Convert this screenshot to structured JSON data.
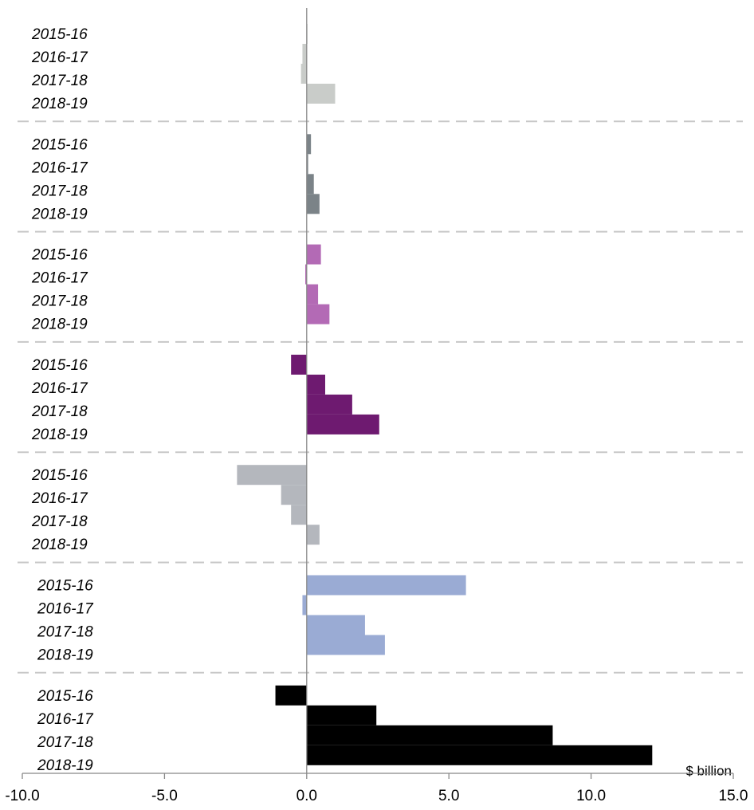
{
  "chart_data": {
    "type": "bar",
    "orientation": "horizontal",
    "xlabel": "$ billion",
    "xlim": [
      -10,
      15
    ],
    "xticks": [
      {
        "value": -10,
        "label": "-10.0"
      },
      {
        "value": -5,
        "label": "-5.0"
      },
      {
        "value": 0,
        "label": "0.0"
      },
      {
        "value": 5,
        "label": "5.0"
      },
      {
        "value": 10,
        "label": "10.0"
      },
      {
        "value": 15,
        "label": "15.0"
      }
    ],
    "series": [
      {
        "color": "#c9ccc9",
        "categories": [
          "2015-16",
          "2016-17",
          "2017-18",
          "2018-19"
        ],
        "values": [
          0.02,
          -0.15,
          -0.2,
          1.0
        ]
      },
      {
        "color": "#7b8388",
        "categories": [
          "2015-16",
          "2016-17",
          "2017-18",
          "2018-19"
        ],
        "values": [
          0.15,
          0.05,
          0.25,
          0.45
        ]
      },
      {
        "color": "#b36ab5",
        "categories": [
          "2015-16",
          "2016-17",
          "2017-18",
          "2018-19"
        ],
        "values": [
          0.5,
          -0.05,
          0.4,
          0.8
        ]
      },
      {
        "color": "#6e1a70",
        "categories": [
          "2015-16",
          "2016-17",
          "2017-18",
          "2018-19"
        ],
        "values": [
          -0.55,
          0.65,
          1.6,
          2.55
        ]
      },
      {
        "color": "#b4b7bd",
        "categories": [
          "2015-16",
          "2016-17",
          "2017-18",
          "2018-19"
        ],
        "values": [
          -2.45,
          -0.9,
          -0.55,
          0.45
        ]
      },
      {
        "color": "#9aabd4",
        "categories": [
          "2015-16",
          "2016-17",
          "2017-18",
          "2018-19"
        ],
        "values": [
          5.6,
          -0.15,
          2.05,
          2.75
        ]
      },
      {
        "color": "#000000",
        "categories": [
          "2015-16",
          "2016-17",
          "2017-18",
          "2018-19"
        ],
        "values": [
          -1.1,
          2.45,
          8.65,
          12.15
        ]
      }
    ]
  }
}
